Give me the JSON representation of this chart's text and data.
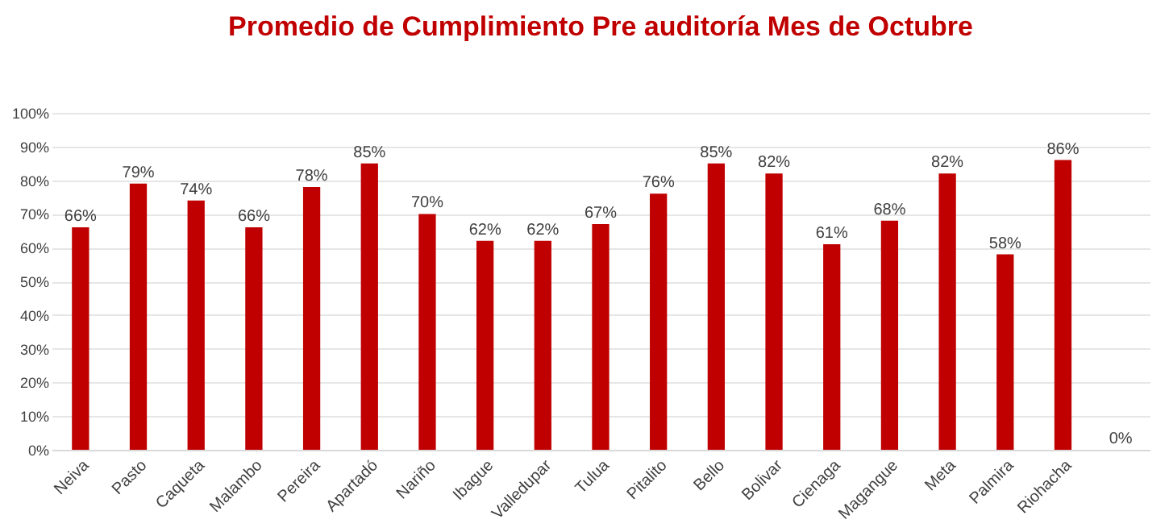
{
  "chart_data": {
    "type": "bar",
    "title": "Promedio de Cumplimiento Pre auditoría Mes de Octubre",
    "categories": [
      "Neiva",
      "Pasto",
      "Caqueta",
      "Malambo",
      "Pereira",
      "Apartadó",
      "Nariño",
      "Ibague",
      "Valledupar",
      "Tulua",
      "Pitalito",
      "Bello",
      "Bolivar",
      "Cienaga",
      "Magangue",
      "Meta",
      "Palmira",
      "Riohacha",
      null
    ],
    "values": [
      66,
      79,
      74,
      66,
      78,
      85,
      70,
      62,
      62,
      67,
      76,
      85,
      82,
      61,
      68,
      82,
      58,
      86,
      0
    ],
    "value_labels": [
      "66%",
      "79%",
      "74%",
      "66%",
      "78%",
      "85%",
      "70%",
      "62%",
      "62%",
      "67%",
      "76%",
      "85%",
      "82%",
      "61%",
      "68%",
      "82%",
      "58%",
      "86%",
      "0%"
    ],
    "color": "#c00000",
    "ylim": [
      0,
      100
    ],
    "yticks": [
      {
        "value": 0,
        "label": "0%"
      },
      {
        "value": 10,
        "label": "10%"
      },
      {
        "value": 20,
        "label": "20%"
      },
      {
        "value": 30,
        "label": "30%"
      },
      {
        "value": 40,
        "label": "40%"
      },
      {
        "value": 50,
        "label": "50%"
      },
      {
        "value": 60,
        "label": "60%"
      },
      {
        "value": 70,
        "label": "70%"
      },
      {
        "value": 80,
        "label": "80%"
      },
      {
        "value": 90,
        "label": "90%"
      },
      {
        "value": 100,
        "label": "100%"
      }
    ],
    "grid": "y"
  }
}
